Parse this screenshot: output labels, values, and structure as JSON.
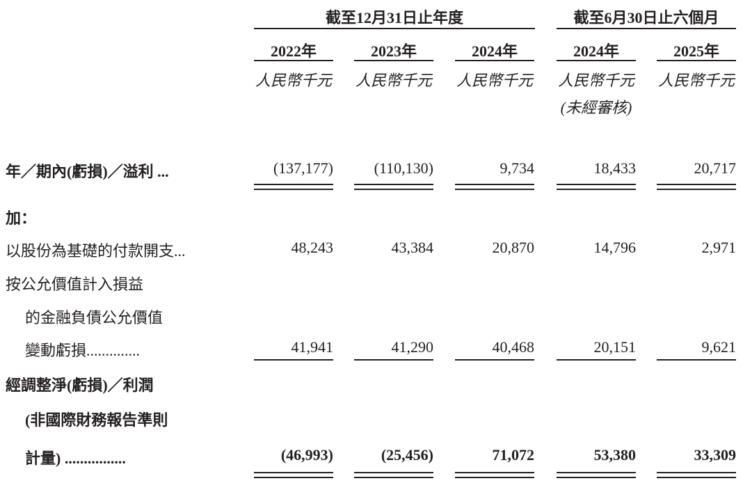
{
  "header": {
    "group_full_year": "截至12月31日止年度",
    "group_six_months": "截至6月30日止六個月",
    "years": [
      "2022年",
      "2023年",
      "2024年",
      "2024年",
      "2025年"
    ],
    "units": [
      "人民幣千元",
      "人民幣千元",
      "人民幣千元",
      "人民幣千元",
      "人民幣千元"
    ],
    "unaudited_note": "(未經審核)"
  },
  "rows": {
    "profit": {
      "label": "年／期內(虧損)／溢利 ...",
      "values": [
        "(137,177)",
        "(110,130)",
        "9,734",
        "18,433",
        "20,717"
      ]
    },
    "add_label": "加：",
    "share_based": {
      "label": "以股份為基礎的付款開支...",
      "values": [
        "48,243",
        "43,384",
        "20,870",
        "14,796",
        "2,971"
      ]
    },
    "fv_change": {
      "label_1": "按公允價值計入損益",
      "label_2": "的金融負債公允價值",
      "label_3": "變動虧損..............",
      "values": [
        "41,941",
        "41,290",
        "40,468",
        "20,151",
        "9,621"
      ]
    },
    "adjusted": {
      "label_1": "經調整淨(虧損)／利潤",
      "label_2": "(非國際財務報告準則",
      "label_3": "計量) ................",
      "values": [
        "(46,993)",
        "(25,456)",
        "71,072",
        "53,380",
        "33,309"
      ]
    }
  }
}
